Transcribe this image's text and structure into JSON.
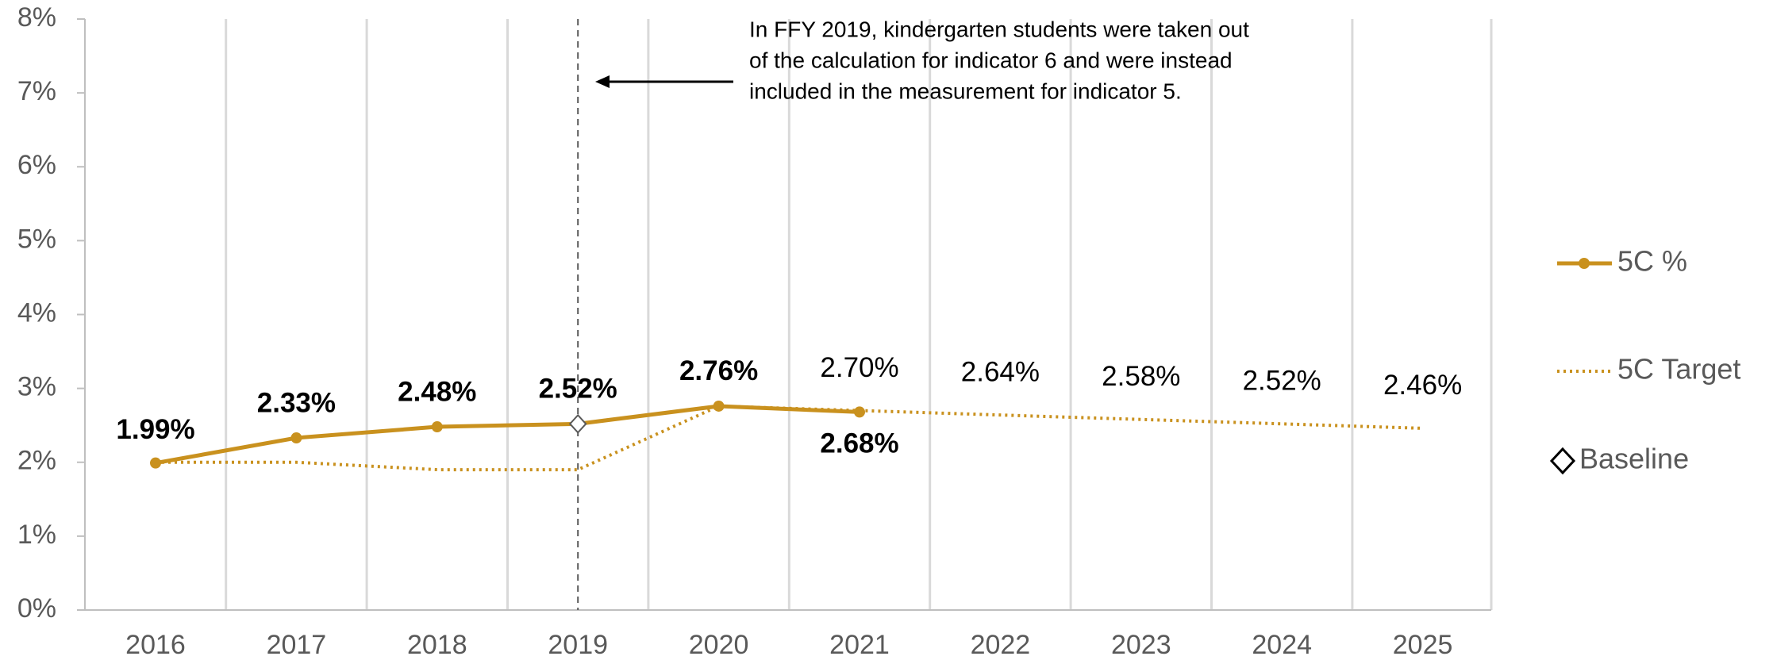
{
  "chart_data": {
    "type": "line",
    "categories": [
      "2016",
      "2017",
      "2018",
      "2019",
      "2020",
      "2021",
      "2022",
      "2023",
      "2024",
      "2025"
    ],
    "series": [
      {
        "name": "5C %",
        "color": "#C9911E",
        "style": "solid",
        "marker": "circle",
        "values": [
          1.99,
          2.33,
          2.48,
          2.52,
          2.76,
          2.68,
          null,
          null,
          null,
          null
        ],
        "value_labels": [
          "1.99%",
          "2.33%",
          "2.48%",
          "2.52%",
          "2.76%",
          "2.68%",
          null,
          null,
          null,
          null
        ]
      },
      {
        "name": "5C Target",
        "color": "#C9911E",
        "style": "dotted",
        "marker": "none",
        "values": [
          2.0,
          2.0,
          1.9,
          1.9,
          2.76,
          2.7,
          2.64,
          2.58,
          2.52,
          2.46
        ],
        "value_labels": [
          null,
          null,
          null,
          null,
          null,
          "2.70%",
          "2.64%",
          "2.58%",
          "2.52%",
          "2.46%"
        ]
      },
      {
        "name": "Baseline",
        "color": "#595959",
        "style": "none",
        "marker": "diamond",
        "values": [
          null,
          null,
          null,
          2.52,
          null,
          null,
          null,
          null,
          null,
          null
        ]
      }
    ],
    "ylim": [
      0,
      8
    ],
    "yticks": [
      {
        "value": 0,
        "label": "0%"
      },
      {
        "value": 1,
        "label": "1%"
      },
      {
        "value": 2,
        "label": "2%"
      },
      {
        "value": 3,
        "label": "3%"
      },
      {
        "value": 4,
        "label": "4%"
      },
      {
        "value": 5,
        "label": "5%"
      },
      {
        "value": 6,
        "label": "6%"
      },
      {
        "value": 7,
        "label": "7%"
      },
      {
        "value": 8,
        "label": "8%"
      }
    ],
    "annotation": [
      "In FFY 2019, kindergarten students were taken out",
      "of the calculation for indicator 6 and were instead",
      "included in the measurement for indicator 5."
    ],
    "legend": "right"
  }
}
